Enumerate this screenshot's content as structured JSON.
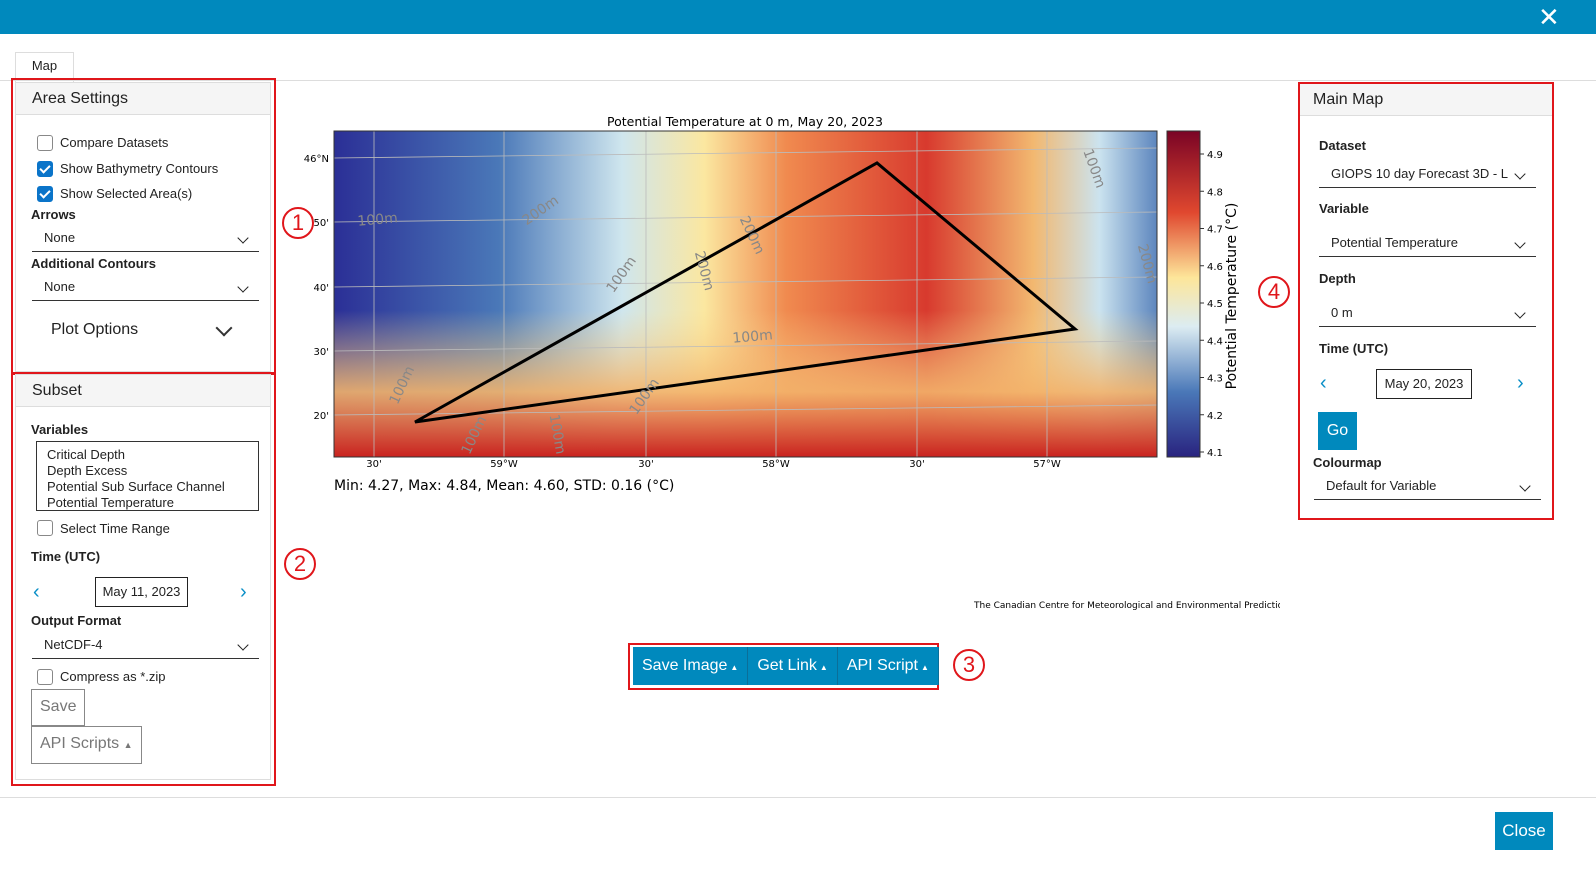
{
  "window": {
    "tab": "Map",
    "close_button": "Close"
  },
  "area_settings": {
    "title": "Area Settings",
    "checkboxes": [
      {
        "label": "Compare Datasets",
        "checked": false
      },
      {
        "label": "Show Bathymetry Contours",
        "checked": true
      },
      {
        "label": "Show Selected Area(s)",
        "checked": true
      }
    ],
    "arrows_label": "Arrows",
    "arrows_value": "None",
    "contours_label": "Additional Contours",
    "contours_value": "None",
    "plot_options": "Plot Options"
  },
  "subset": {
    "title": "Subset",
    "variables_label": "Variables",
    "variables": [
      "Critical Depth",
      "Depth Excess",
      "Potential Sub Surface Channel",
      "Potential Temperature"
    ],
    "select_time_range": {
      "label": "Select Time Range",
      "checked": false
    },
    "time_label": "Time (UTC)",
    "time_value": "May 11, 2023",
    "output_format_label": "Output Format",
    "output_format": "NetCDF-4",
    "compress": {
      "label": "Compress as *.zip",
      "checked": false
    },
    "save": "Save",
    "api_scripts": "API Scripts"
  },
  "plot": {
    "title": "Potential Temperature  at 0 m, May 20, 2023",
    "colorbar_label": "Potential Temperature (°C)",
    "colorbar_ticks": [
      "4.9",
      "4.8",
      "4.7",
      "4.6",
      "4.5",
      "4.4",
      "4.3",
      "4.2",
      "4.1"
    ],
    "lat_ticks": [
      "46°N",
      "50'",
      "40'",
      "30'",
      "20'"
    ],
    "lon_ticks": [
      "30'",
      "59°W",
      "30'",
      "58°W",
      "30'",
      "57°W"
    ],
    "contour_labels": [
      "100m",
      "200m",
      "200m",
      "100m",
      "200m",
      "100m",
      "100m",
      "100m",
      "100m",
      "100m",
      "100m",
      "200m"
    ],
    "stats": "Min: 4.27, Max: 4.84, Mean: 4.60, STD: 0.16 (°C)",
    "credit": "The Canadian Centre for Meteorological and Environmental Prediction"
  },
  "actions": [
    "Save Image",
    "Get Link",
    "API Script"
  ],
  "main_map": {
    "title": "Main Map",
    "dataset_label": "Dataset",
    "dataset": "GIOPS 10 day Forecast 3D - L",
    "variable_label": "Variable",
    "variable": "Potential Temperature",
    "depth_label": "Depth",
    "depth": "0 m",
    "time_label": "Time (UTC)",
    "time_value": "May 20, 2023",
    "go": "Go",
    "colourmap_label": "Colourmap",
    "colourmap": "Default for Variable"
  },
  "annotations": [
    "1",
    "2",
    "3",
    "4"
  ]
}
